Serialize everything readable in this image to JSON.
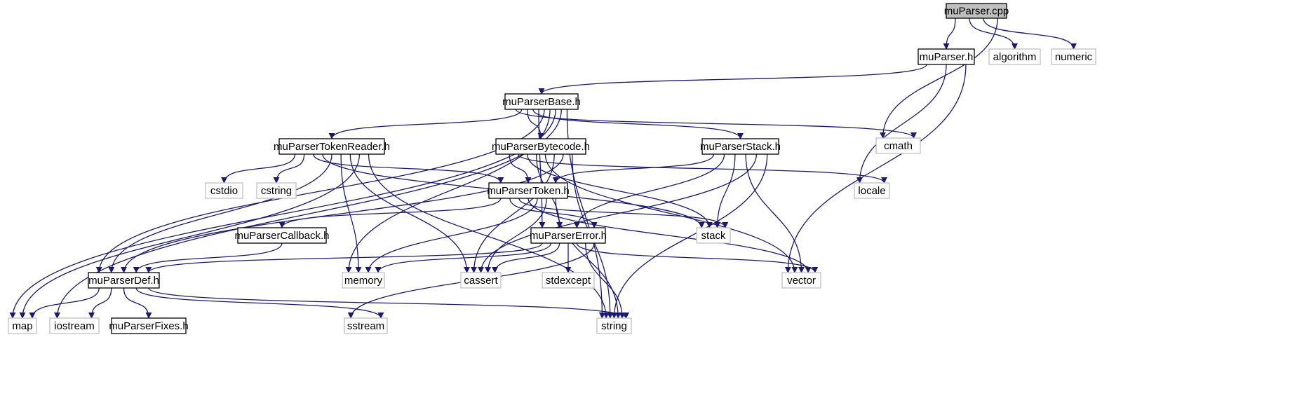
{
  "graph": {
    "title": "muParser.cpp",
    "colors": {
      "edge": "#191970",
      "root_fill": "#bfbfbf",
      "local_border": "#000000",
      "system_border": "#bfbfbf",
      "text": "#000000"
    },
    "nodes": [
      {
        "id": "root",
        "label": "muParser.cpp",
        "kind": "root"
      },
      {
        "id": "muParser_h",
        "label": "muParser.h",
        "kind": "local"
      },
      {
        "id": "algorithm",
        "label": "algorithm",
        "kind": "system"
      },
      {
        "id": "numeric",
        "label": "numeric",
        "kind": "system"
      },
      {
        "id": "muParserBase_h",
        "label": "muParserBase.h",
        "kind": "local"
      },
      {
        "id": "cmath",
        "label": "cmath",
        "kind": "system"
      },
      {
        "id": "muParserTokenReader_h",
        "label": "muParserTokenReader.h",
        "kind": "local"
      },
      {
        "id": "muParserBytecode_h",
        "label": "muParserBytecode.h",
        "kind": "local"
      },
      {
        "id": "muParserStack_h",
        "label": "muParserStack.h",
        "kind": "local"
      },
      {
        "id": "cstdio",
        "label": "cstdio",
        "kind": "system"
      },
      {
        "id": "cstring",
        "label": "cstring",
        "kind": "system"
      },
      {
        "id": "muParserToken_h",
        "label": "muParserToken.h",
        "kind": "local"
      },
      {
        "id": "locale",
        "label": "locale",
        "kind": "system"
      },
      {
        "id": "muParserCallback_h",
        "label": "muParserCallback.h",
        "kind": "local"
      },
      {
        "id": "muParserError_h",
        "label": "muParserError.h",
        "kind": "local"
      },
      {
        "id": "stack",
        "label": "stack",
        "kind": "system"
      },
      {
        "id": "muParserDef_h",
        "label": "muParserDef.h",
        "kind": "local"
      },
      {
        "id": "memory",
        "label": "memory",
        "kind": "system"
      },
      {
        "id": "cassert",
        "label": "cassert",
        "kind": "system"
      },
      {
        "id": "stdexcept",
        "label": "stdexcept",
        "kind": "system"
      },
      {
        "id": "vector",
        "label": "vector",
        "kind": "system"
      },
      {
        "id": "map",
        "label": "map",
        "kind": "system"
      },
      {
        "id": "iostream",
        "label": "iostream",
        "kind": "system"
      },
      {
        "id": "muParserFixes_h",
        "label": "muParserFixes.h",
        "kind": "local"
      },
      {
        "id": "sstream",
        "label": "sstream",
        "kind": "system"
      },
      {
        "id": "string",
        "label": "string",
        "kind": "system"
      }
    ],
    "edges": [
      [
        "root",
        "muParser_h"
      ],
      [
        "root",
        "algorithm"
      ],
      [
        "root",
        "numeric"
      ],
      [
        "root",
        "cmath"
      ],
      [
        "muParser_h",
        "muParserBase_h"
      ],
      [
        "muParser_h",
        "locale"
      ],
      [
        "muParser_h",
        "vector"
      ],
      [
        "muParserBase_h",
        "cmath"
      ],
      [
        "muParserBase_h",
        "muParserTokenReader_h"
      ],
      [
        "muParserBase_h",
        "muParserBytecode_h"
      ],
      [
        "muParserBase_h",
        "muParserStack_h"
      ],
      [
        "muParserBase_h",
        "muParserError_h"
      ],
      [
        "muParserBase_h",
        "muParserDef_h"
      ],
      [
        "muParserBase_h",
        "memory"
      ],
      [
        "muParserBase_h",
        "map"
      ],
      [
        "muParserBase_h",
        "iostream"
      ],
      [
        "muParserBase_h",
        "string"
      ],
      [
        "muParserTokenReader_h",
        "cstdio"
      ],
      [
        "muParserTokenReader_h",
        "cstring"
      ],
      [
        "muParserTokenReader_h",
        "muParserToken_h"
      ],
      [
        "muParserTokenReader_h",
        "stack"
      ],
      [
        "muParserTokenReader_h",
        "muParserDef_h"
      ],
      [
        "muParserTokenReader_h",
        "memory"
      ],
      [
        "muParserTokenReader_h",
        "cassert"
      ],
      [
        "muParserTokenReader_h",
        "map"
      ],
      [
        "muParserTokenReader_h",
        "string"
      ],
      [
        "muParserBytecode_h",
        "muParserToken_h"
      ],
      [
        "muParserBytecode_h",
        "locale"
      ],
      [
        "muParserBytecode_h",
        "stack"
      ],
      [
        "muParserBytecode_h",
        "muParserError_h"
      ],
      [
        "muParserBytecode_h",
        "vector"
      ],
      [
        "muParserBytecode_h",
        "cassert"
      ],
      [
        "muParserBytecode_h",
        "muParserDef_h"
      ],
      [
        "muParserBytecode_h",
        "string"
      ],
      [
        "muParserStack_h",
        "muParserToken_h"
      ],
      [
        "muParserStack_h",
        "muParserError_h"
      ],
      [
        "muParserStack_h",
        "stack"
      ],
      [
        "muParserStack_h",
        "vector"
      ],
      [
        "muParserStack_h",
        "cassert"
      ],
      [
        "muParserStack_h",
        "string"
      ],
      [
        "muParserToken_h",
        "muParserCallback_h"
      ],
      [
        "muParserToken_h",
        "muParserError_h"
      ],
      [
        "muParserToken_h",
        "stack"
      ],
      [
        "muParserToken_h",
        "vector"
      ],
      [
        "muParserToken_h",
        "memory"
      ],
      [
        "muParserToken_h",
        "cassert"
      ],
      [
        "muParserToken_h",
        "string"
      ],
      [
        "muParserCallback_h",
        "muParserDef_h"
      ],
      [
        "muParserError_h",
        "muParserDef_h"
      ],
      [
        "muParserError_h",
        "memory"
      ],
      [
        "muParserError_h",
        "cassert"
      ],
      [
        "muParserError_h",
        "stdexcept"
      ],
      [
        "muParserError_h",
        "vector"
      ],
      [
        "muParserError_h",
        "string"
      ],
      [
        "muParserError_h",
        "sstream"
      ],
      [
        "muParserDef_h",
        "map"
      ],
      [
        "muParserDef_h",
        "iostream"
      ],
      [
        "muParserDef_h",
        "muParserFixes_h"
      ],
      [
        "muParserDef_h",
        "sstream"
      ],
      [
        "muParserDef_h",
        "string"
      ]
    ]
  }
}
